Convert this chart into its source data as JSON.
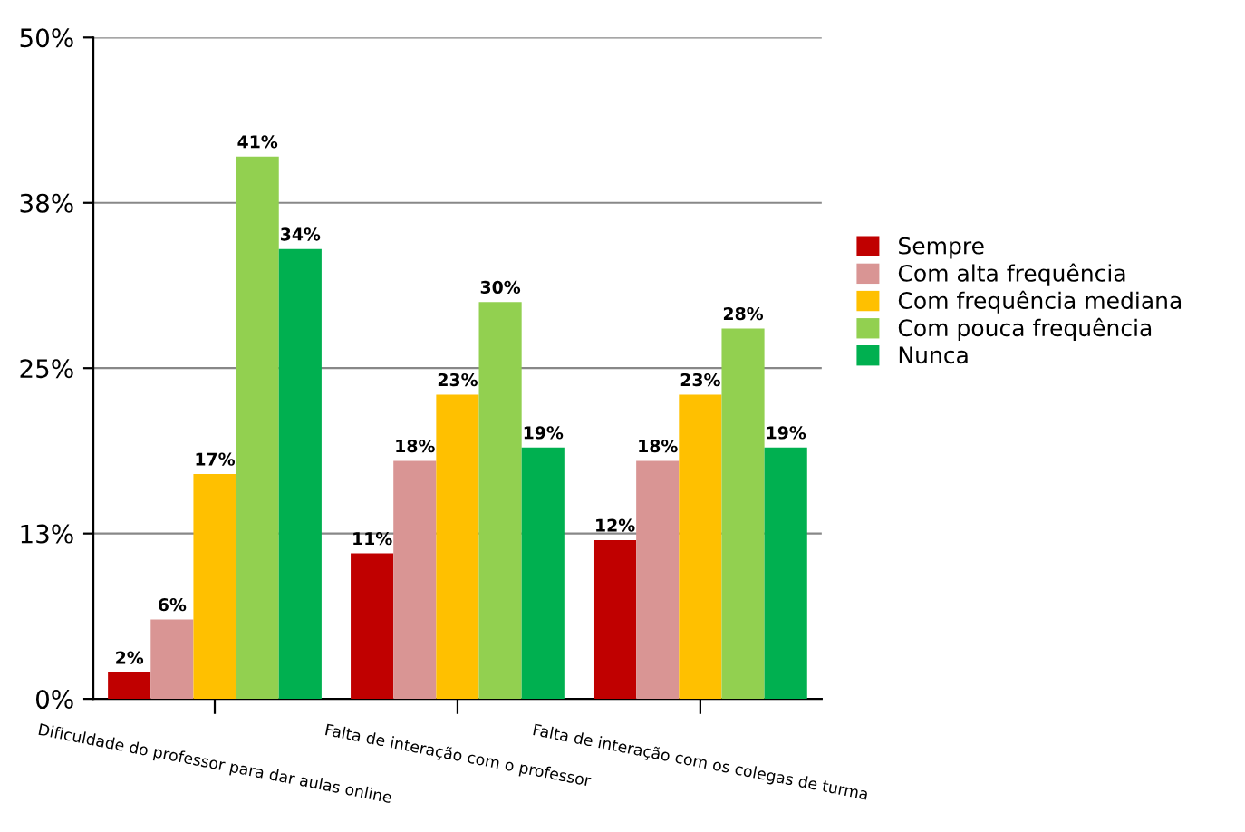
{
  "chart_data": {
    "type": "bar",
    "categories": [
      "Dificuldade do professor para dar aulas online",
      "Falta de interação com o professor",
      "Falta de interação com os colegas de turma"
    ],
    "series": [
      {
        "name": "Sempre",
        "color": "#c00000",
        "values": [
          2,
          11,
          12
        ],
        "value_labels": [
          "2%",
          "11%",
          "12%"
        ]
      },
      {
        "name": "Com alta frequência",
        "color": "#d99594",
        "values": [
          6,
          18,
          18
        ],
        "value_labels": [
          "6%",
          "18%",
          "18%"
        ]
      },
      {
        "name": "Com frequência mediana",
        "color": "#ffc000",
        "values": [
          17,
          23,
          23
        ],
        "value_labels": [
          "17%",
          "23%",
          "23%"
        ]
      },
      {
        "name": "Com pouca frequência",
        "color": "#92d050",
        "values": [
          41,
          30,
          28
        ],
        "value_labels": [
          "41%",
          "30%",
          "28%"
        ]
      },
      {
        "name": "Nunca",
        "color": "#00b050",
        "values": [
          34,
          19,
          19
        ],
        "value_labels": [
          "34%",
          "19%",
          "19%"
        ]
      }
    ],
    "ylim": [
      0,
      50
    ],
    "yticks": [
      {
        "value": 0,
        "label": "0%"
      },
      {
        "value": 12.5,
        "label": "13%"
      },
      {
        "value": 25,
        "label": "25%"
      },
      {
        "value": 37.5,
        "label": "38%"
      },
      {
        "value": 50,
        "label": "50%"
      }
    ],
    "grid": "y",
    "legend": "right"
  }
}
